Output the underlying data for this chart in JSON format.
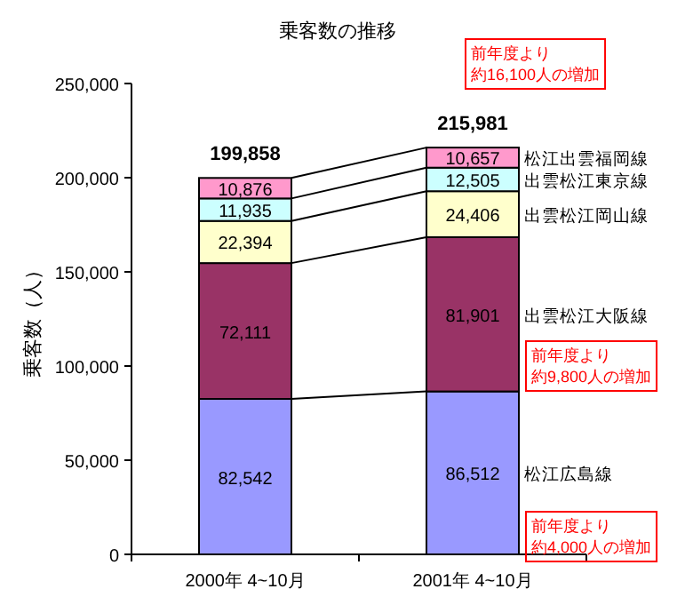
{
  "chart_data": {
    "type": "bar",
    "stacked": true,
    "title": "乗客数の推移",
    "ylabel": "乗客数（人）",
    "categories": [
      "2000年 4~10月",
      "2001年 4~10月"
    ],
    "series": [
      {
        "name": "松江広島線",
        "color": "#9999ff",
        "values": [
          82542,
          86512
        ],
        "value_labels": [
          "82,542",
          "86,512"
        ]
      },
      {
        "name": "出雲松江大阪線",
        "color": "#993366",
        "values": [
          72111,
          81901
        ],
        "value_labels": [
          "72,111",
          "81,901"
        ]
      },
      {
        "name": "出雲松江岡山線",
        "color": "#ffffcc",
        "values": [
          22394,
          24406
        ],
        "value_labels": [
          "22,394",
          "24,406"
        ]
      },
      {
        "name": "出雲松江東京線",
        "color": "#ccffff",
        "values": [
          11935,
          12505
        ],
        "value_labels": [
          "11,935",
          "12,505"
        ]
      },
      {
        "name": "松江出雲福岡線",
        "color": "#ff99cc",
        "values": [
          10876,
          10657
        ],
        "value_labels": [
          "10,876",
          "10,657"
        ]
      }
    ],
    "totals": [
      "199,858",
      "215,981"
    ],
    "ylim": [
      0,
      250000
    ],
    "yticks": [
      {
        "value": 0,
        "label": "0"
      },
      {
        "value": 50000,
        "label": "50,000"
      },
      {
        "value": 100000,
        "label": "100,000"
      },
      {
        "value": 150000,
        "label": "150,000"
      },
      {
        "value": 200000,
        "label": "200,000"
      },
      {
        "value": 250000,
        "label": "250,000"
      }
    ],
    "grid": false,
    "annotations": [
      "前年度より約16,100人の増加",
      "前年度より約9,800人の増加",
      "前年度より約4,000人の増加"
    ]
  }
}
